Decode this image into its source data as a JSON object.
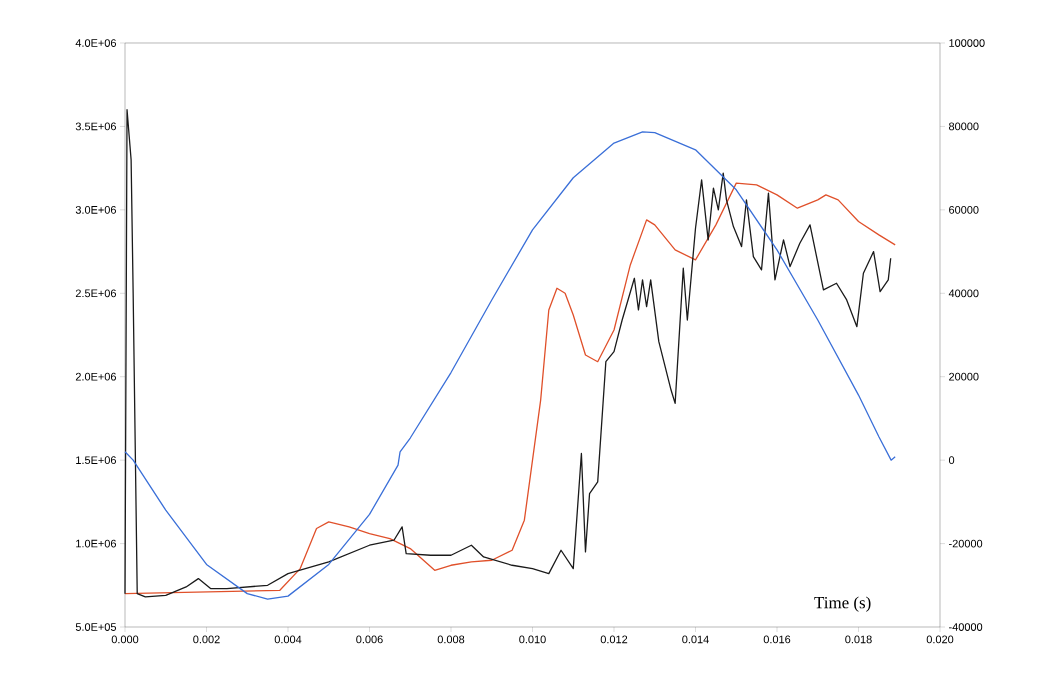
{
  "chart_data": {
    "type": "line",
    "xlabel": "Time (s)",
    "xlim": [
      0,
      0.02
    ],
    "xticks": [
      {
        "value": 0,
        "label": "0.000"
      },
      {
        "value": 0.002,
        "label": "0.002"
      },
      {
        "value": 0.004,
        "label": "0.004"
      },
      {
        "value": 0.006,
        "label": "0.006"
      },
      {
        "value": 0.008,
        "label": "0.008"
      },
      {
        "value": 0.01,
        "label": "0.010"
      },
      {
        "value": 0.012,
        "label": "0.012"
      },
      {
        "value": 0.014,
        "label": "0.014"
      },
      {
        "value": 0.016,
        "label": "0.016"
      },
      {
        "value": 0.018,
        "label": "0.018"
      },
      {
        "value": 0.02,
        "label": "0.020"
      }
    ],
    "ylim": [
      500000,
      4000000
    ],
    "yticks": [
      {
        "value": 500000,
        "label": "5.0E+05"
      },
      {
        "value": 1000000,
        "label": "1.0E+06"
      },
      {
        "value": 1500000,
        "label": "1.5E+06"
      },
      {
        "value": 2000000,
        "label": "2.0E+06"
      },
      {
        "value": 2500000,
        "label": "2.5E+06"
      },
      {
        "value": 3000000,
        "label": "3.0E+06"
      },
      {
        "value": 3500000,
        "label": "3.5E+06"
      },
      {
        "value": 4000000,
        "label": "4.0E+06"
      }
    ],
    "y2lim": [
      -40000,
      100000
    ],
    "y2ticks": [
      -40000,
      -20000,
      0,
      20000,
      40000,
      60000,
      80000,
      100000
    ],
    "grid": false,
    "marker": "none",
    "line_style": "solid",
    "series": [
      {
        "color": "#e0502a",
        "x": [
          0,
          0.0038,
          0.0043,
          0.0047,
          0.005,
          0.0055,
          0.006,
          0.0065,
          0.007,
          0.0076,
          0.008,
          0.0085,
          0.009,
          0.0095,
          0.0098,
          0.0102,
          0.0104,
          0.0106,
          0.0108,
          0.011,
          0.0113,
          0.0116,
          0.012,
          0.0124,
          0.0128,
          0.013,
          0.0135,
          0.014,
          0.0145,
          0.015,
          0.0155,
          0.016,
          0.0165,
          0.017,
          0.0172,
          0.0175,
          0.018,
          0.0185,
          0.0189
        ],
        "values": [
          700000,
          720000,
          850000,
          1090000,
          1130000,
          1100000,
          1060000,
          1030000,
          970000,
          840000,
          870000,
          890000,
          900000,
          960000,
          1140000,
          1860000,
          2400000,
          2530000,
          2500000,
          2370000,
          2130000,
          2090000,
          2280000,
          2670000,
          2940000,
          2910000,
          2760000,
          2700000,
          2910000,
          3160000,
          3150000,
          3090000,
          3010000,
          3060000,
          3090000,
          3060000,
          2930000,
          2850000,
          2790000
        ]
      },
      {
        "color": "#1a1a1a",
        "x": [
          0,
          5e-05,
          0.00015,
          0.0002,
          0.0003,
          0.0005,
          0.001,
          0.0015,
          0.0018,
          0.0021,
          0.0025,
          0.003,
          0.0035,
          0.004,
          0.005,
          0.006,
          0.0066,
          0.0068,
          0.0069,
          0.0075,
          0.008,
          0.0085,
          0.0088,
          0.0095,
          0.01,
          0.0104,
          0.0107,
          0.011,
          0.0112,
          0.0113,
          0.0114,
          0.0116,
          0.0118,
          0.012,
          0.0122,
          0.0125,
          0.0126,
          0.0127,
          0.0128,
          0.0129,
          0.0131,
          0.0134,
          0.0135,
          0.0137,
          0.0138,
          0.014,
          0.01415,
          0.01431,
          0.01444,
          0.01456,
          0.01468,
          0.01476,
          0.01493,
          0.01513,
          0.01525,
          0.01542,
          0.01562,
          0.01579,
          0.01595,
          0.01616,
          0.01632,
          0.01656,
          0.01681,
          0.01714,
          0.01746,
          0.01771,
          0.01796,
          0.01812,
          0.01837,
          0.01853,
          0.01873,
          0.01879
        ],
        "values": [
          700000,
          3600000,
          3300000,
          2500000,
          700000,
          680000,
          690000,
          740000,
          790000,
          730000,
          730000,
          740000,
          750000,
          820000,
          890000,
          990000,
          1020000,
          1100000,
          940000,
          930000,
          930000,
          990000,
          920000,
          870000,
          850000,
          820000,
          960000,
          850000,
          1540000,
          950000,
          1300000,
          1370000,
          2090000,
          2150000,
          2340000,
          2590000,
          2400000,
          2580000,
          2420000,
          2580000,
          2210000,
          1920000,
          1840000,
          2650000,
          2340000,
          2890000,
          3180000,
          2820000,
          3130000,
          3000000,
          3220000,
          3060000,
          2900000,
          2780000,
          3060000,
          2720000,
          2640000,
          3100000,
          2580000,
          2820000,
          2660000,
          2800000,
          2910000,
          2520000,
          2560000,
          2460000,
          2300000,
          2620000,
          2750000,
          2510000,
          2580000,
          2710000
        ]
      },
      {
        "color": "#3a6fd8",
        "axis": "y2",
        "x": [
          0,
          0.0002,
          0.001,
          0.002,
          0.003,
          0.0035,
          0.004,
          0.005,
          0.006,
          0.0067,
          0.00675,
          0.007,
          0.008,
          0.009,
          0.01,
          0.011,
          0.012,
          0.0127,
          0.013,
          0.014,
          0.015,
          0.016,
          0.017,
          0.018,
          0.0185,
          0.0188,
          0.0189
        ],
        "values": [
          2000,
          0,
          -12000,
          -25000,
          -32000,
          -33300,
          -32600,
          -25000,
          -13000,
          -1200,
          2000,
          5300,
          21000,
          38400,
          55200,
          67700,
          76000,
          78700,
          78500,
          74400,
          64800,
          50400,
          33600,
          15600,
          5600,
          0,
          800
        ]
      }
    ]
  }
}
